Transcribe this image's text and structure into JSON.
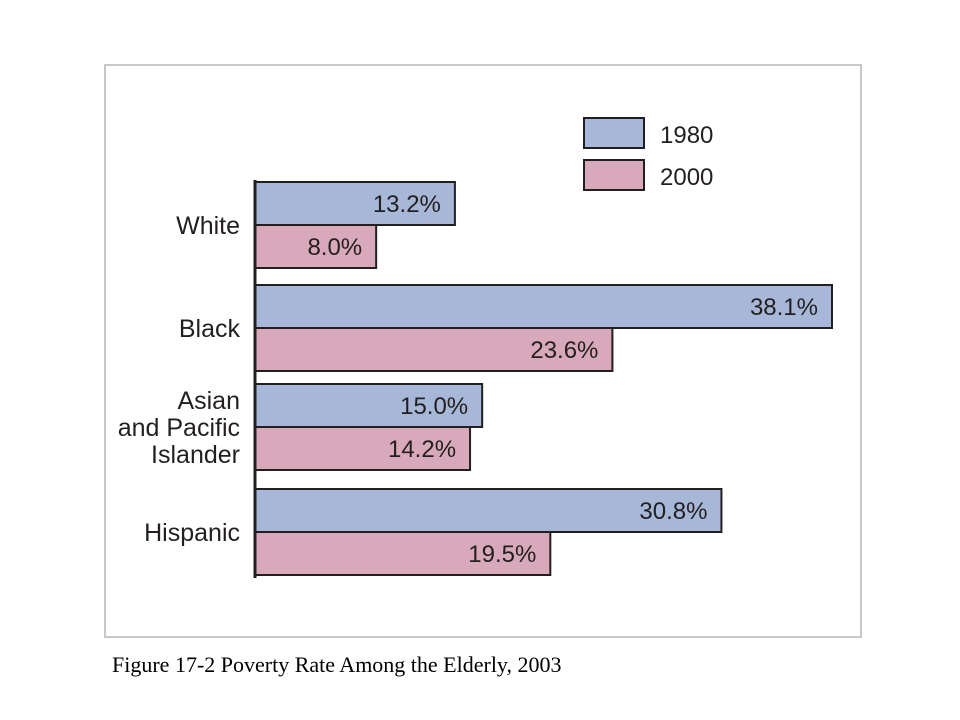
{
  "caption": "Figure 17-2 Poverty Rate Among the Elderly, 2003",
  "chart_data": {
    "type": "bar",
    "orientation": "horizontal",
    "title": "",
    "xlabel": "",
    "ylabel": "",
    "categories": [
      [
        "White"
      ],
      [
        "Black"
      ],
      [
        "Asian",
        "and Pacific",
        "Islander"
      ],
      [
        "Hispanic"
      ]
    ],
    "series": [
      {
        "name": "1980",
        "color": "#a7b7d8",
        "values": [
          13.2,
          38.1,
          15.0,
          30.8
        ],
        "labels": [
          "13.2%",
          "38.1%",
          "15.0%",
          "30.8%"
        ]
      },
      {
        "name": "2000",
        "color": "#d8a9ba",
        "values": [
          8.0,
          23.6,
          14.2,
          19.5
        ],
        "labels": [
          "8.0%",
          "23.6%",
          "14.2%",
          "19.5%"
        ]
      }
    ],
    "xlim": [
      0,
      38.1
    ],
    "grid": false,
    "legend": "top-right",
    "value_unit": "%"
  }
}
